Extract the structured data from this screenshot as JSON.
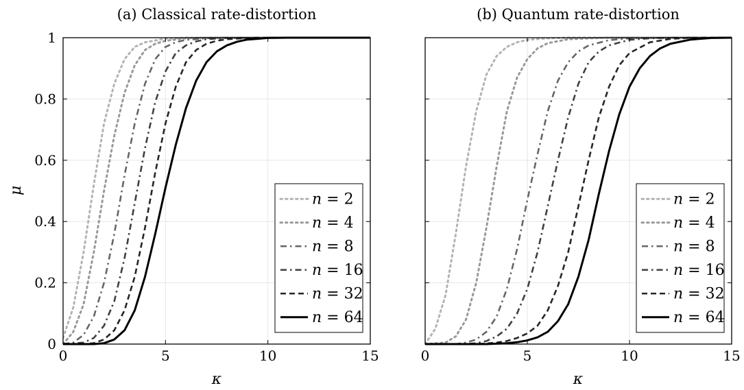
{
  "chart_data": [
    {
      "type": "line",
      "title": "(a) Classical rate-distortion",
      "xlabel": "κ",
      "ylabel": "μ",
      "xlim": [
        0,
        15
      ],
      "ylim": [
        0,
        1
      ],
      "xticks": [
        "0",
        "5",
        "10",
        "15"
      ],
      "yticks": [
        "0",
        "0.2",
        "0.4",
        "0.6",
        "0.8",
        "1"
      ],
      "grid": true,
      "legend_position": "bottom-right",
      "series": [
        {
          "name": "n = 2",
          "color": "#b3b3b3",
          "dash": "dotted",
          "x": [
            0,
            0.5,
            1,
            1.5,
            2,
            2.5,
            3,
            3.5,
            4,
            5,
            6,
            7,
            8,
            10,
            15
          ],
          "y": [
            0.02,
            0.12,
            0.3,
            0.52,
            0.72,
            0.85,
            0.93,
            0.97,
            0.985,
            0.997,
            1,
            1,
            1,
            1,
            1
          ]
        },
        {
          "name": "n = 4",
          "color": "#999999",
          "dash": "dotted",
          "x": [
            0,
            0.5,
            1,
            1.5,
            2,
            2.5,
            3,
            3.5,
            4,
            4.5,
            5,
            6,
            7,
            8,
            10,
            15
          ],
          "y": [
            0.0,
            0.04,
            0.13,
            0.3,
            0.5,
            0.68,
            0.82,
            0.91,
            0.96,
            0.98,
            0.99,
            0.998,
            1,
            1,
            1,
            1
          ]
        },
        {
          "name": "n = 8",
          "color": "#666666",
          "dash": "dashdot",
          "x": [
            0,
            0.5,
            1,
            1.5,
            2,
            2.5,
            3,
            3.5,
            4,
            4.5,
            5,
            5.5,
            6,
            7,
            8,
            10,
            15
          ],
          "y": [
            0,
            0.005,
            0.03,
            0.09,
            0.2,
            0.36,
            0.55,
            0.72,
            0.85,
            0.93,
            0.97,
            0.985,
            0.993,
            0.998,
            1,
            1,
            1
          ]
        },
        {
          "name": "n = 16",
          "color": "#404040",
          "dash": "dashdot",
          "x": [
            0,
            1,
            1.5,
            2,
            2.5,
            3,
            3.5,
            4,
            4.5,
            5,
            5.5,
            6,
            6.5,
            7,
            8,
            10,
            15
          ],
          "y": [
            0,
            0.005,
            0.02,
            0.06,
            0.14,
            0.28,
            0.46,
            0.64,
            0.79,
            0.89,
            0.95,
            0.975,
            0.988,
            0.995,
            0.999,
            1,
            1
          ]
        },
        {
          "name": "n = 32",
          "color": "#262626",
          "dash": "dashed",
          "x": [
            0,
            1,
            1.5,
            2,
            2.5,
            3,
            3.5,
            4,
            4.5,
            5,
            5.5,
            6,
            6.5,
            7,
            7.5,
            8,
            9,
            10,
            15
          ],
          "y": [
            0,
            0.0,
            0.003,
            0.015,
            0.045,
            0.11,
            0.22,
            0.38,
            0.56,
            0.72,
            0.84,
            0.92,
            0.96,
            0.98,
            0.99,
            0.995,
            0.999,
            1,
            1
          ]
        },
        {
          "name": "n = 64",
          "color": "#000000",
          "dash": "solid",
          "x": [
            0,
            1.5,
            2,
            2.5,
            3,
            3.5,
            4,
            4.5,
            5,
            5.5,
            6,
            6.5,
            7,
            7.5,
            8,
            8.5,
            9,
            10,
            11,
            15
          ],
          "y": [
            0,
            0,
            0.003,
            0.015,
            0.045,
            0.11,
            0.22,
            0.36,
            0.51,
            0.65,
            0.77,
            0.86,
            0.92,
            0.955,
            0.975,
            0.987,
            0.994,
            0.999,
            1,
            1
          ]
        }
      ]
    },
    {
      "type": "line",
      "title": "(b) Quantum rate-distortion",
      "xlabel": "κ",
      "ylabel": "",
      "xlim": [
        0,
        15
      ],
      "ylim": [
        0,
        1
      ],
      "xticks": [
        "0",
        "5",
        "10",
        "15"
      ],
      "yticks": [],
      "grid": true,
      "legend_position": "bottom-right",
      "series": [
        {
          "name": "n = 2",
          "color": "#b3b3b3",
          "dash": "dotted",
          "x": [
            0,
            0.5,
            1,
            1.5,
            2,
            2.5,
            3,
            3.5,
            4,
            4.5,
            5,
            6,
            7,
            8,
            10,
            15
          ],
          "y": [
            0.0,
            0.05,
            0.16,
            0.36,
            0.58,
            0.76,
            0.88,
            0.94,
            0.97,
            0.985,
            0.993,
            0.998,
            1,
            1,
            1,
            1
          ]
        },
        {
          "name": "n = 4",
          "color": "#999999",
          "dash": "dotted",
          "x": [
            0,
            1,
            1.5,
            2,
            2.5,
            3,
            3.5,
            4,
            4.5,
            5,
            5.5,
            6,
            7,
            8,
            9,
            10,
            15
          ],
          "y": [
            0,
            0.005,
            0.025,
            0.08,
            0.2,
            0.38,
            0.58,
            0.76,
            0.87,
            0.93,
            0.965,
            0.982,
            0.995,
            0.998,
            1,
            1,
            1
          ]
        },
        {
          "name": "n = 8",
          "color": "#666666",
          "dash": "dashdot",
          "x": [
            0,
            1.5,
            2,
            2.5,
            3,
            3.5,
            4,
            4.5,
            5,
            5.5,
            6,
            6.5,
            7,
            7.5,
            8,
            9,
            10,
            12,
            15
          ],
          "y": [
            0,
            0,
            0.005,
            0.015,
            0.04,
            0.09,
            0.18,
            0.31,
            0.47,
            0.62,
            0.76,
            0.86,
            0.92,
            0.955,
            0.975,
            0.992,
            0.998,
            1,
            1
          ]
        },
        {
          "name": "n = 16",
          "color": "#404040",
          "dash": "dashdot",
          "x": [
            0,
            2,
            2.5,
            3,
            3.5,
            4,
            4.5,
            5,
            5.5,
            6,
            6.5,
            7,
            7.5,
            8,
            8.5,
            9,
            10,
            11,
            12,
            15
          ],
          "y": [
            0,
            0,
            0.003,
            0.01,
            0.025,
            0.05,
            0.1,
            0.18,
            0.3,
            0.45,
            0.6,
            0.74,
            0.85,
            0.92,
            0.955,
            0.975,
            0.993,
            0.998,
            1,
            1
          ]
        },
        {
          "name": "n = 32",
          "color": "#262626",
          "dash": "dashed",
          "x": [
            0,
            2.5,
            3,
            3.5,
            4,
            4.5,
            5,
            5.5,
            6,
            6.5,
            7,
            7.5,
            8,
            8.5,
            9,
            9.5,
            10,
            11,
            12,
            13,
            15
          ],
          "y": [
            0,
            0,
            0.002,
            0.005,
            0.01,
            0.02,
            0.035,
            0.06,
            0.11,
            0.19,
            0.3,
            0.45,
            0.6,
            0.74,
            0.84,
            0.91,
            0.95,
            0.985,
            0.996,
            1,
            1
          ]
        },
        {
          "name": "n = 64",
          "color": "#000000",
          "dash": "solid",
          "x": [
            0,
            3,
            4,
            4.5,
            5,
            5.5,
            6,
            6.5,
            7,
            7.5,
            8,
            8.5,
            9,
            9.5,
            10,
            10.5,
            11,
            11.5,
            12,
            13,
            14,
            15
          ],
          "y": [
            0,
            0,
            0.003,
            0.006,
            0.012,
            0.022,
            0.04,
            0.075,
            0.13,
            0.22,
            0.34,
            0.49,
            0.63,
            0.75,
            0.84,
            0.9,
            0.94,
            0.965,
            0.98,
            0.994,
            0.999,
            1
          ]
        }
      ]
    }
  ]
}
